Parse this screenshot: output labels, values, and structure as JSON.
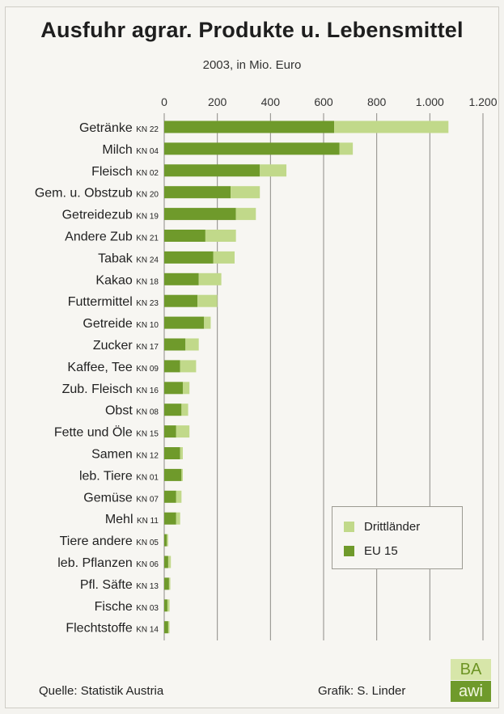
{
  "header": {
    "title": "Ausfuhr agrar. Produkte u. Lebensmittel",
    "subtitle": "2003, in Mio. Euro"
  },
  "footer": {
    "source": "Quelle: Statistik Austria",
    "credit": "Grafik: S. Linder",
    "logo_top": "BA",
    "logo_bottom": "awi"
  },
  "legend": {
    "items": [
      {
        "label": "Drittländer",
        "color": "#c1d98a"
      },
      {
        "label": "EU 15",
        "color": "#6f9a2b"
      }
    ]
  },
  "chart_data": {
    "type": "bar",
    "orientation": "horizontal",
    "stacked": true,
    "title": "Ausfuhr agrar. Produkte u. Lebensmittel",
    "subtitle": "2003, in Mio. Euro",
    "xlim": [
      0,
      1200
    ],
    "x_ticks": [
      "0",
      "200",
      "400",
      "600",
      "800",
      "1.000",
      "1.200"
    ],
    "x_tick_values": [
      0,
      200,
      400,
      600,
      800,
      1000,
      1200
    ],
    "grid": true,
    "legend_position": "bottom-right",
    "categories": [
      {
        "name": "Getränke",
        "code": "KN 22"
      },
      {
        "name": "Milch",
        "code": "KN 04"
      },
      {
        "name": "Fleisch",
        "code": "KN 02"
      },
      {
        "name": "Gem. u. Obstzub",
        "code": "KN 20"
      },
      {
        "name": "Getreidezub",
        "code": "KN 19"
      },
      {
        "name": "Andere Zub",
        "code": "KN 21"
      },
      {
        "name": "Tabak",
        "code": "KN 24"
      },
      {
        "name": "Kakao",
        "code": "KN 18"
      },
      {
        "name": "Futtermittel",
        "code": "KN 23"
      },
      {
        "name": "Getreide",
        "code": "KN 10"
      },
      {
        "name": "Zucker",
        "code": "KN 17"
      },
      {
        "name": "Kaffee, Tee",
        "code": "KN 09"
      },
      {
        "name": "Zub. Fleisch",
        "code": "KN 16"
      },
      {
        "name": "Obst",
        "code": "KN 08"
      },
      {
        "name": "Fette und Öle",
        "code": "KN 15"
      },
      {
        "name": "Samen",
        "code": "KN 12"
      },
      {
        "name": "leb. Tiere",
        "code": "KN 01"
      },
      {
        "name": "Gemüse",
        "code": "KN 07"
      },
      {
        "name": "Mehl",
        "code": "KN 11"
      },
      {
        "name": "Tiere andere",
        "code": "KN 05"
      },
      {
        "name": "leb. Pflanzen",
        "code": "KN 06"
      },
      {
        "name": "Pfl. Säfte",
        "code": "KN 13"
      },
      {
        "name": "Fische",
        "code": "KN 03"
      },
      {
        "name": "Flechtstoffe",
        "code": "KN 14"
      }
    ],
    "series": [
      {
        "name": "EU 15",
        "color": "#6f9a2b",
        "values": [
          640,
          660,
          360,
          250,
          270,
          155,
          185,
          130,
          125,
          150,
          80,
          60,
          70,
          65,
          45,
          60,
          65,
          45,
          45,
          10,
          15,
          18,
          12,
          15
        ]
      },
      {
        "name": "Drittländer",
        "color": "#c1d98a",
        "values": [
          430,
          50,
          100,
          110,
          75,
          115,
          80,
          85,
          75,
          25,
          50,
          60,
          25,
          25,
          50,
          10,
          5,
          20,
          15,
          5,
          10,
          5,
          8,
          5
        ]
      }
    ]
  }
}
